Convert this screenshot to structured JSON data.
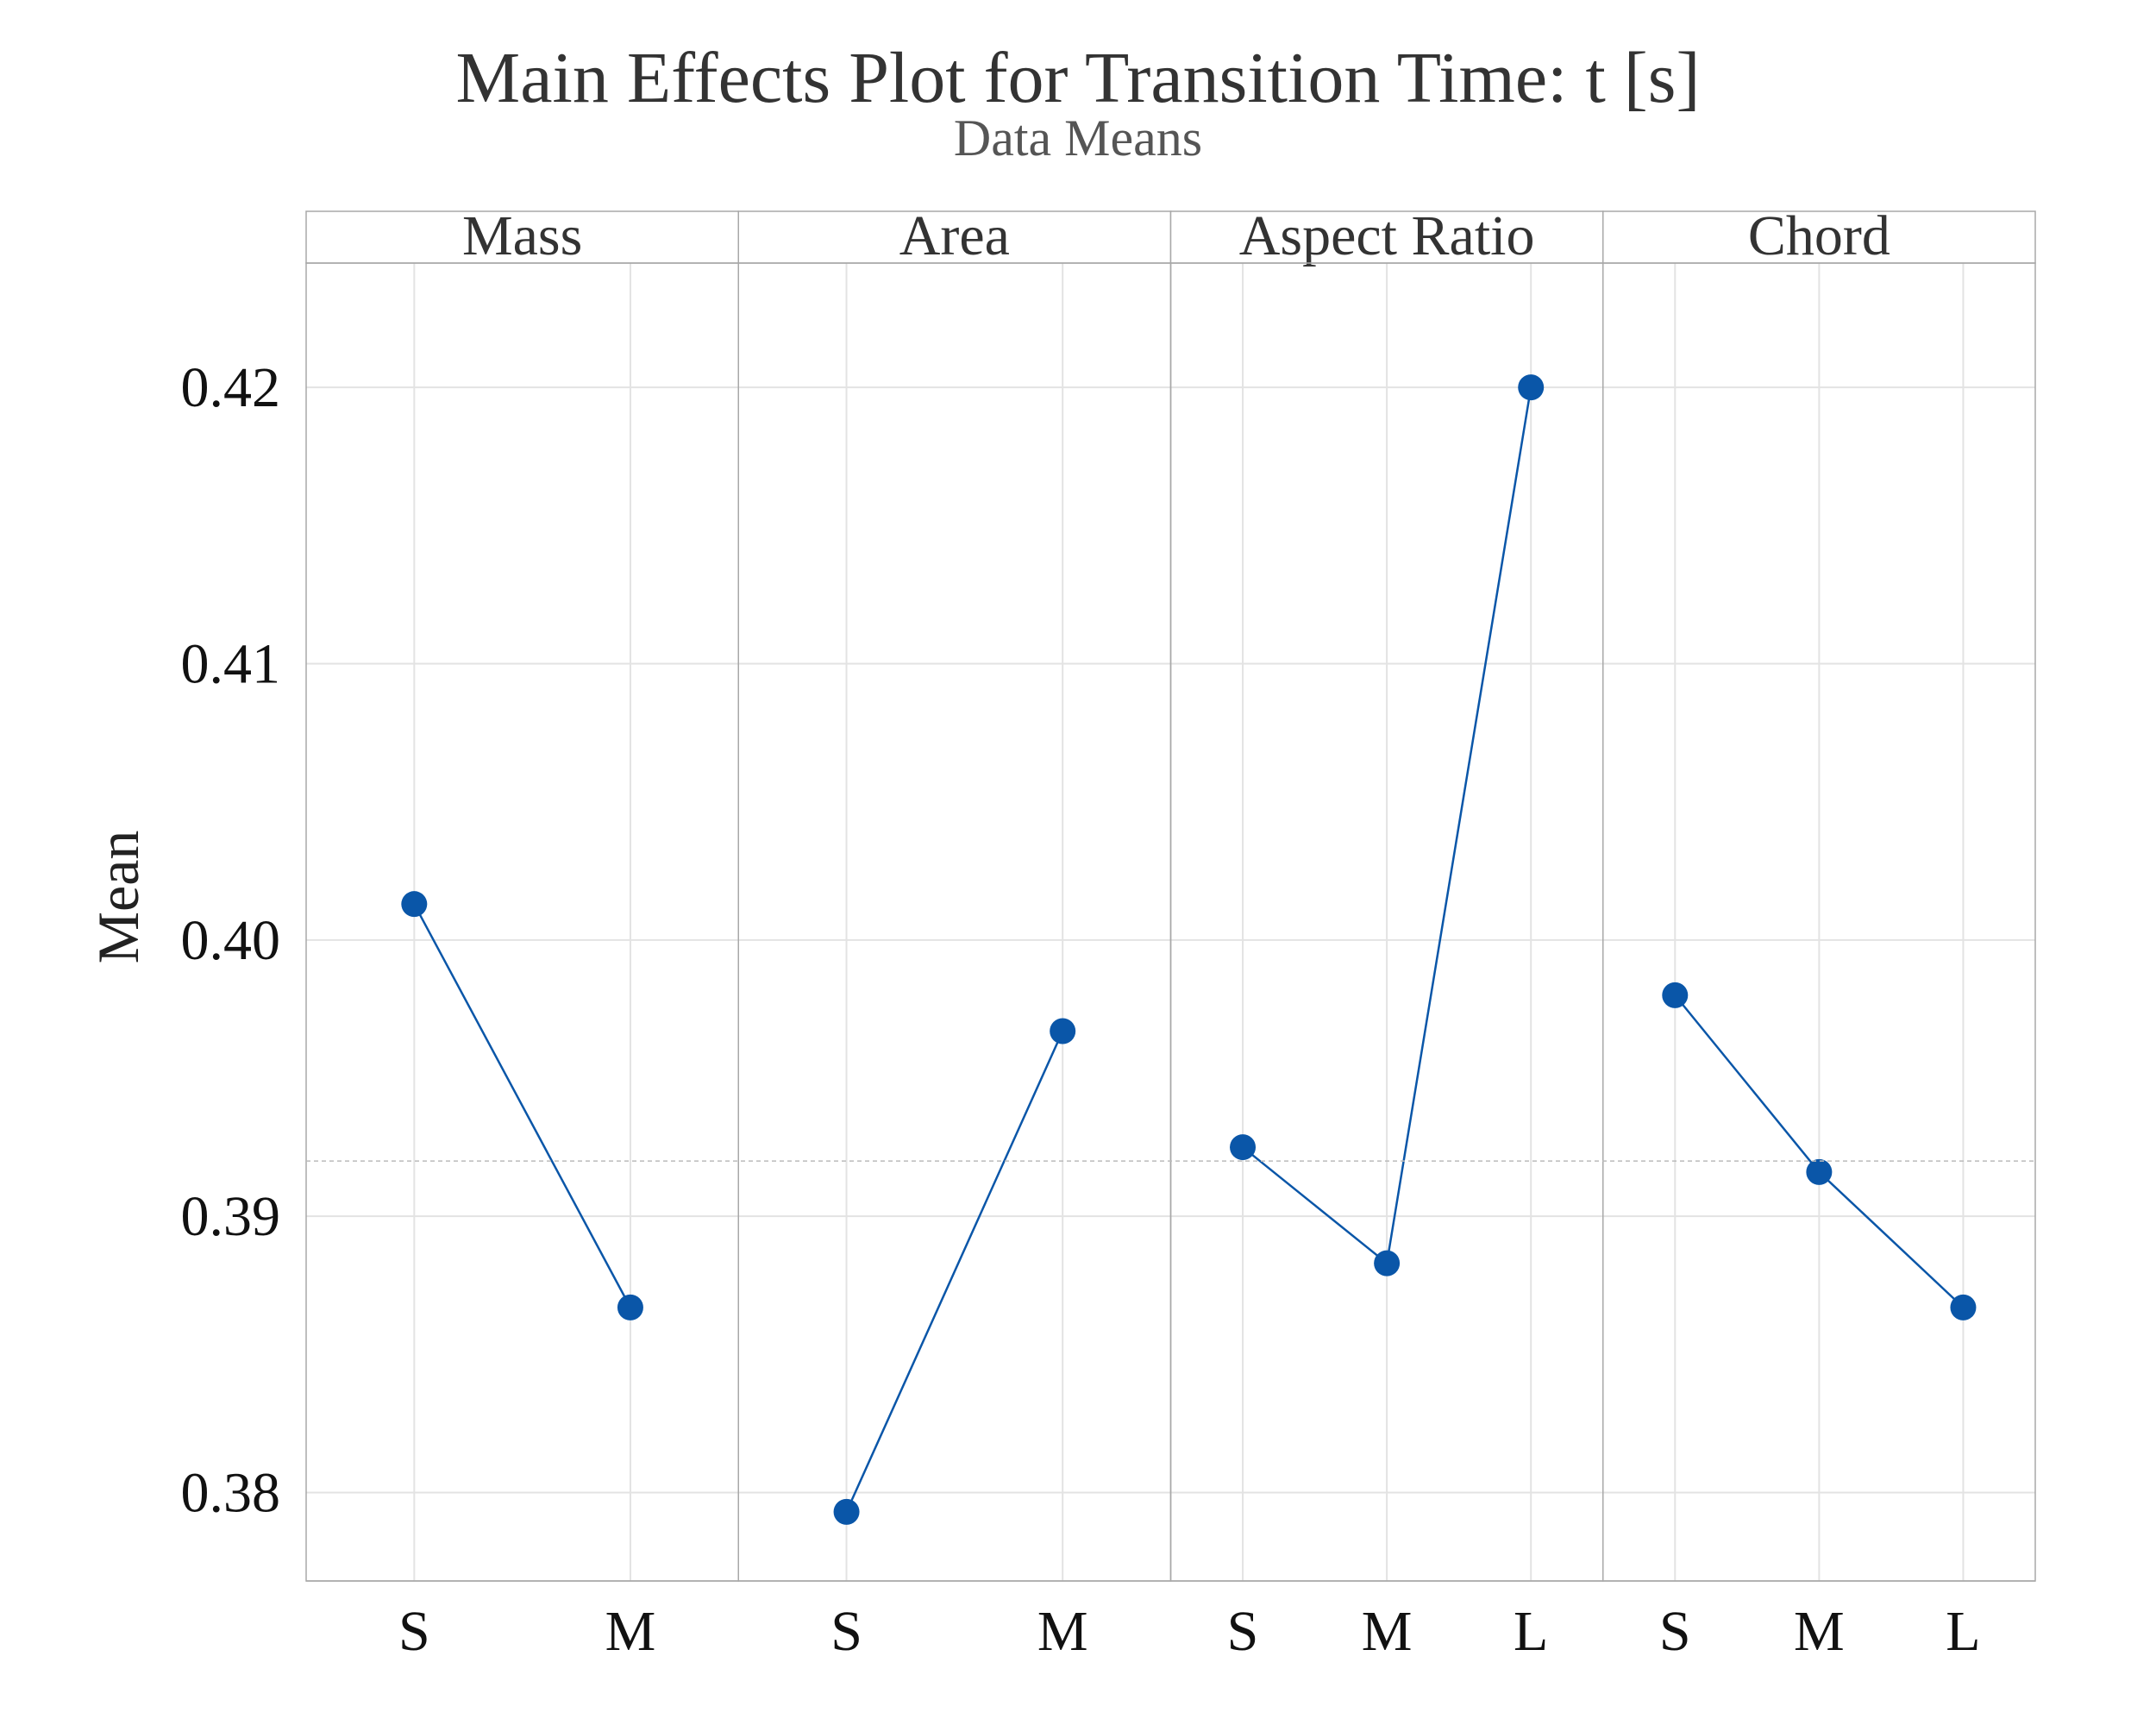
{
  "chart_data": {
    "type": "line",
    "title": "Main Effects Plot for Transition Time: t [s]",
    "subtitle": "Data Means",
    "ylabel": "Mean",
    "ylim": [
      0.3768,
      0.4245
    ],
    "yticks": [
      "0.38",
      "0.39",
      "0.40",
      "0.41",
      "0.42"
    ],
    "reference_line": 0.392,
    "grid": true,
    "colors": {
      "series": "#0a56a8",
      "grid": "#e3e3e3",
      "panel_border": "#a8a8a8",
      "reference": "#bbbbbb"
    },
    "panels": [
      {
        "name": "Mass",
        "categories": [
          "S",
          "M"
        ],
        "values": [
          0.4013,
          0.3867
        ]
      },
      {
        "name": "Area",
        "categories": [
          "S",
          "M"
        ],
        "values": [
          0.3793,
          0.3967
        ]
      },
      {
        "name": "Aspect Ratio",
        "categories": [
          "S",
          "M",
          "L"
        ],
        "values": [
          0.3925,
          0.3883,
          0.42
        ]
      },
      {
        "name": "Chord",
        "categories": [
          "S",
          "M",
          "L"
        ],
        "values": [
          0.398,
          0.3916,
          0.3867
        ]
      }
    ]
  }
}
